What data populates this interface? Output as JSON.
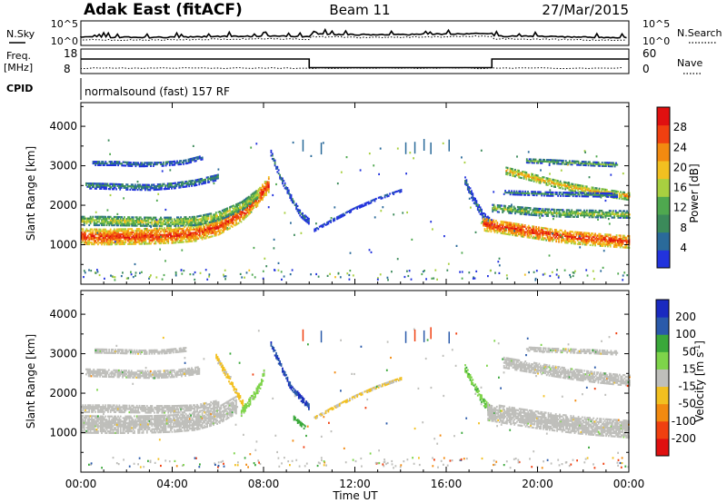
{
  "header": {
    "station": "Adak East (fitACF)",
    "beam": "Beam 11",
    "date": "27/Mar/2015"
  },
  "noise_panel": {
    "left_label": "N.Sky",
    "right_label": "N.Search",
    "left_ticks": [
      "10^5",
      "10^0"
    ],
    "right_ticks": [
      "10^5",
      "10^0"
    ]
  },
  "freq_panel": {
    "left_label_line1": "Freq.",
    "left_label_line2": "[MHz]",
    "left_ticks": [
      "18",
      "8"
    ],
    "right_label": "Nave",
    "right_ticks": [
      "60",
      "0"
    ]
  },
  "cpid": {
    "label": "CPID",
    "value": "normalsound (fast) 157 RF"
  },
  "colors": {
    "power_scale": [
      "#2233dd",
      "#2a6a9a",
      "#3b8a5a",
      "#4fa84f",
      "#a8d040",
      "#f2c020",
      "#f28a10",
      "#f04010",
      "#e01010"
    ],
    "velocity_scale": [
      "#e01010",
      "#f04010",
      "#f28a10",
      "#f2c020",
      "#bfbfbb",
      "#7ed44a",
      "#3aa83a",
      "#2a5aaa",
      "#1a2ac0"
    ],
    "ground_scatter": "#bfbfbb"
  },
  "chart_data": [
    {
      "type": "heatmap",
      "name": "power",
      "ylabel": "Slant Range [km]",
      "yticks": [
        "1000",
        "2000",
        "3000",
        "4000"
      ],
      "ylim": [
        0,
        4600
      ],
      "xlim": [
        0,
        24
      ],
      "colorbar": {
        "label": "Power [dB]",
        "ticks": [
          "4",
          "8",
          "12",
          "16",
          "20",
          "24",
          "28"
        ],
        "range": [
          0,
          32
        ]
      },
      "bands": [
        {
          "x": [
            0,
            1,
            2,
            3,
            4,
            5,
            6,
            7,
            7.7,
            8.2
          ],
          "y": [
            1180,
            1170,
            1180,
            1190,
            1210,
            1260,
            1420,
            1750,
            2150,
            2500
          ],
          "width": 380,
          "level": 28
        },
        {
          "x": [
            0,
            1,
            2,
            3,
            4,
            5,
            6,
            7,
            7.8
          ],
          "y": [
            1580,
            1580,
            1570,
            1560,
            1560,
            1580,
            1700,
            1950,
            2300
          ],
          "width": 220,
          "level": 18
        },
        {
          "x": [
            0.2,
            1,
            2,
            3,
            4,
            5,
            6
          ],
          "y": [
            2480,
            2470,
            2450,
            2440,
            2480,
            2560,
            2700
          ],
          "width": 160,
          "level": 10
        },
        {
          "x": [
            0.5,
            1.5,
            2.5,
            3.5,
            4.5,
            5.3
          ],
          "y": [
            3050,
            3050,
            3020,
            3030,
            3080,
            3200
          ],
          "width": 120,
          "level": 9
        },
        {
          "x": [
            8.3,
            8.7,
            9.2,
            9.6,
            10.0
          ],
          "y": [
            3300,
            2700,
            2150,
            1750,
            1550
          ],
          "width": 140,
          "level": 8
        },
        {
          "x": [
            10.2,
            11.0,
            12.0,
            13.0,
            14.0
          ],
          "y": [
            1350,
            1600,
            1900,
            2150,
            2350
          ],
          "width": 60,
          "level": 6
        },
        {
          "x": [
            16.8,
            17.2,
            17.6,
            18.0
          ],
          "y": [
            2600,
            2100,
            1700,
            1500
          ],
          "width": 180,
          "level": 8
        },
        {
          "x": [
            17.6,
            18.5,
            19.5,
            20.5,
            21.5,
            22.5,
            23.5,
            24
          ],
          "y": [
            1500,
            1420,
            1330,
            1240,
            1170,
            1120,
            1080,
            1060
          ],
          "width": 330,
          "level": 28
        },
        {
          "x": [
            18,
            19,
            20,
            21,
            22,
            23,
            24
          ],
          "y": [
            1900,
            1850,
            1800,
            1770,
            1760,
            1750,
            1740
          ],
          "width": 170,
          "level": 16
        },
        {
          "x": [
            18.6,
            19.5,
            20.5,
            21.5,
            22.5,
            23.5,
            24
          ],
          "y": [
            2850,
            2720,
            2560,
            2430,
            2330,
            2240,
            2200
          ],
          "width": 180,
          "level": 22
        },
        {
          "x": [
            18.5,
            19.5,
            20.5,
            21.5,
            22.5,
            23.5
          ],
          "y": [
            2300,
            2280,
            2260,
            2250,
            2240,
            2230
          ],
          "width": 90,
          "level": 10
        },
        {
          "x": [
            19.5,
            20.5,
            21.5,
            22.5,
            23.5
          ],
          "y": [
            3100,
            3080,
            3050,
            3020,
            3000
          ],
          "width": 90,
          "level": 14
        }
      ]
    },
    {
      "type": "heatmap",
      "name": "velocity",
      "ylabel": "Slant Range [km]",
      "yticks": [
        "1000",
        "2000",
        "3000",
        "4000"
      ],
      "ylim": [
        0,
        4600
      ],
      "xlim": [
        0,
        24
      ],
      "xticks": [
        "00:00",
        "04:00",
        "08:00",
        "12:00",
        "16:00",
        "20:00",
        "00:00"
      ],
      "xlabel": "Time UT",
      "colorbar": {
        "label": "Velocity [m s-1]",
        "label_main": "Velocity [m s",
        "label_sup": "-1",
        "label_end": "]",
        "ticks": [
          "-200",
          "-100",
          "-50",
          "-15",
          "15",
          "50",
          "100",
          "200"
        ]
      },
      "bands": [
        {
          "x": [
            0,
            1,
            2,
            3,
            4,
            5,
            6,
            6.8
          ],
          "y": [
            1200,
            1190,
            1190,
            1200,
            1220,
            1270,
            1430,
            1700
          ],
          "width": 450,
          "level": "ground"
        },
        {
          "x": [
            0,
            1,
            2,
            3,
            4,
            5,
            6
          ],
          "y": [
            1600,
            1600,
            1590,
            1580,
            1580,
            1600,
            1720
          ],
          "width": 200,
          "level": "ground"
        },
        {
          "x": [
            0.2,
            1.2,
            2.2,
            3.2,
            4.2,
            5.2
          ],
          "y": [
            2500,
            2480,
            2460,
            2450,
            2480,
            2560
          ],
          "width": 180,
          "level": "ground"
        },
        {
          "x": [
            0.6,
            1.6,
            2.6,
            3.6,
            4.6
          ],
          "y": [
            3050,
            3040,
            3020,
            3030,
            3090
          ],
          "width": 100,
          "level": "ground"
        },
        {
          "x": [
            7.0,
            7.4,
            7.8,
            8.0
          ],
          "y": [
            1500,
            1800,
            2150,
            2500
          ],
          "width": 200,
          "level": 30
        },
        {
          "x": [
            5.9,
            6.3,
            6.7,
            7.1
          ],
          "y": [
            2900,
            2500,
            2100,
            1700
          ],
          "width": 160,
          "level": -30
        },
        {
          "x": [
            8.3,
            8.7,
            9.1,
            9.6,
            10.0
          ],
          "y": [
            3200,
            2700,
            2200,
            1850,
            1600
          ],
          "width": 130,
          "level": 200
        },
        {
          "x": [
            9.3,
            9.8
          ],
          "y": [
            1350,
            1100
          ],
          "width": 100,
          "level": 70
        },
        {
          "x": [
            10.2,
            11.0,
            12.0,
            13.0,
            14.0
          ],
          "y": [
            1350,
            1600,
            1900,
            2150,
            2350
          ],
          "width": 60,
          "level": -20
        },
        {
          "x": [
            16.8,
            17.2,
            17.6,
            18.0
          ],
          "y": [
            2600,
            2150,
            1750,
            1500
          ],
          "width": 170,
          "level": 40
        },
        {
          "x": [
            17.8,
            18.8,
            19.8,
            20.8,
            21.8,
            22.8,
            23.8,
            24
          ],
          "y": [
            1500,
            1400,
            1310,
            1230,
            1160,
            1110,
            1070,
            1050
          ],
          "width": 420,
          "level": "ground"
        },
        {
          "x": [
            18.5,
            19.5,
            20.5,
            21.5,
            22.5,
            23.5,
            24
          ],
          "y": [
            2750,
            2650,
            2550,
            2460,
            2380,
            2320,
            2300
          ],
          "width": 260,
          "level": "ground"
        },
        {
          "x": [
            19.5,
            20.5,
            21.5,
            22.5,
            23.5
          ],
          "y": [
            3100,
            3070,
            3050,
            3030,
            3000
          ],
          "width": 100,
          "level": "ground"
        }
      ]
    }
  ]
}
